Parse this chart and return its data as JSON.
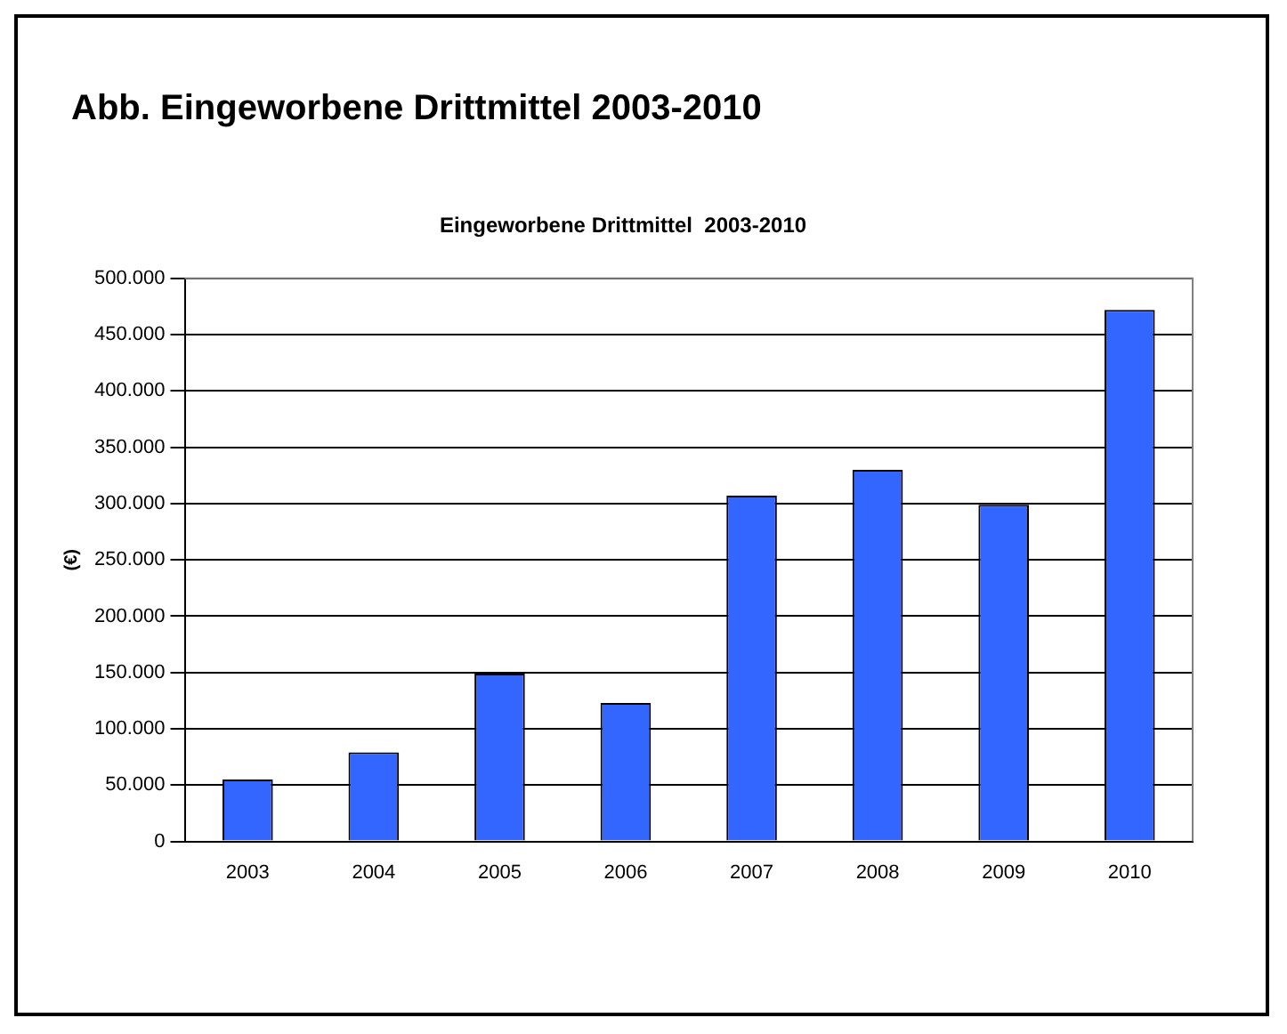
{
  "chart_data": {
    "type": "bar",
    "title": "Abb. Eingeworbene Drittmittel 2003-2010",
    "subtitle": "Eingeworbene Drittmittel  2003-2010",
    "ylabel": "(€)",
    "categories": [
      "2003",
      "2004",
      "2005",
      "2006",
      "2007",
      "2008",
      "2009",
      "2010"
    ],
    "values": [
      55000,
      79000,
      149000,
      123000,
      307000,
      330000,
      299000,
      472000
    ],
    "color": "#3366ff",
    "ylim": [
      0,
      500000
    ],
    "yticks": [
      {
        "value": 0,
        "label": "0"
      },
      {
        "value": 50000,
        "label": "50.000"
      },
      {
        "value": 100000,
        "label": "100.000"
      },
      {
        "value": 150000,
        "label": "150.000"
      },
      {
        "value": 200000,
        "label": "200.000"
      },
      {
        "value": 250000,
        "label": "250.000"
      },
      {
        "value": 300000,
        "label": "300.000"
      },
      {
        "value": 350000,
        "label": "350.000"
      },
      {
        "value": 400000,
        "label": "400.000"
      },
      {
        "value": 450000,
        "label": "450.000"
      },
      {
        "value": 500000,
        "label": "500.000"
      }
    ],
    "grid": "y",
    "legend": false
  }
}
